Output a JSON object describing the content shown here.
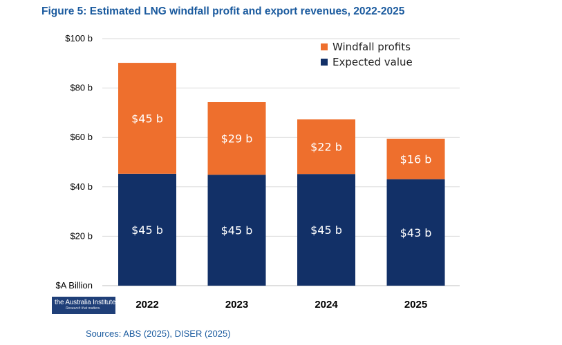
{
  "figure_title": "Figure 5: Estimated LNG windfall profit and export revenues, 2022-2025",
  "sources": "Sources: ABS (2025), DISER (2025)",
  "logo": {
    "name": "the Australia Institute",
    "tagline": "Research that matters."
  },
  "colors": {
    "expected": "#123067",
    "windfall": "#ee6f2d",
    "grid": "#d9d9d9",
    "title": "#1a5a9e"
  },
  "chart_data": {
    "type": "bar",
    "stacked": true,
    "categories": [
      "2022",
      "2023",
      "2024",
      "2025"
    ],
    "series": [
      {
        "name": "Expected value",
        "values": [
          45.3,
          44.9,
          45.2,
          43.1
        ],
        "labels": [
          "$45 b",
          "$45 b",
          "$45 b",
          "$43 b"
        ]
      },
      {
        "name": "Windfall profits",
        "values": [
          44.9,
          29.4,
          22.1,
          16.4
        ],
        "labels": [
          "$45 b",
          "$29 b",
          "$22 b",
          "$16 b"
        ]
      }
    ],
    "y_ticks": [
      {
        "value": 0,
        "label": "$A Billion"
      },
      {
        "value": 20,
        "label": "$20 b"
      },
      {
        "value": 40,
        "label": "$40 b"
      },
      {
        "value": 60,
        "label": "$60 b"
      },
      {
        "value": 80,
        "label": "$80 b"
      },
      {
        "value": 100,
        "label": "$100 b"
      }
    ],
    "ylim": [
      0,
      100
    ],
    "grid": true,
    "legend": {
      "position": "top-right",
      "order": [
        "Windfall profits",
        "Expected value"
      ]
    }
  }
}
